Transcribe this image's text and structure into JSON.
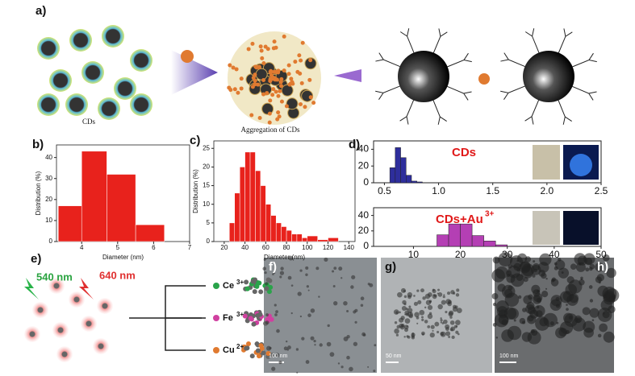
{
  "figure": {
    "a": {
      "label": "a)",
      "left_caption": "CDs",
      "center_caption": "Aggregation of CDs"
    },
    "d": {
      "label": "d)",
      "top_annotation": "CDs",
      "bottom_annotation": "CDs+Au",
      "bottom_annotation_sup": "3+"
    },
    "e": {
      "label": "e)",
      "green_wavelength": "540 nm",
      "red_wavelength": "640 nm",
      "ions": [
        {
          "symbol": "Ce",
          "charge": "3+"
        },
        {
          "symbol": "Fe",
          "charge": "3+"
        },
        {
          "symbol": "Cu",
          "charge": "2+"
        }
      ]
    },
    "f": {
      "label": "f)",
      "scale": "100 nm"
    },
    "g": {
      "label": "g)",
      "scale": "50 nm"
    },
    "h": {
      "label": "h)",
      "scale": "100 nm"
    }
  },
  "chart_data": [
    {
      "type": "histogram",
      "label": "b)",
      "xlabel": "Diameter (nm)",
      "ylabel": "Distribution (%)",
      "color": "#e8221c",
      "bins": [
        3.35,
        4,
        4.7,
        5.5,
        6.3
      ],
      "counts": [
        17,
        43,
        32,
        8
      ],
      "xlim": [
        3.3,
        7
      ],
      "ylim": [
        0,
        46
      ],
      "xticks": [
        4,
        5,
        6,
        7
      ],
      "yticks": [
        0,
        10,
        20,
        30,
        40
      ]
    },
    {
      "type": "histogram",
      "label": "c)",
      "xlabel": "Diameter (nm)",
      "ylabel": "Distribution (%)",
      "color": "#e8221c",
      "bins": [
        25,
        30,
        35,
        40,
        45,
        50,
        55,
        60,
        65,
        70,
        75,
        80,
        85,
        90,
        95,
        100,
        110,
        120,
        130
      ],
      "counts": [
        5,
        13,
        20,
        24,
        24,
        19,
        15,
        10,
        7,
        5,
        4,
        3,
        2,
        2,
        1,
        1.5,
        0.5,
        1
      ],
      "xlim": [
        10,
        146
      ],
      "ylim": [
        0,
        27
      ],
      "xticks": [
        20,
        40,
        60,
        80,
        100,
        120,
        140
      ],
      "yticks": [
        0,
        5,
        10,
        15,
        20,
        25
      ]
    },
    {
      "type": "histogram",
      "color": "#2e2e9c",
      "bins": [
        0.55,
        0.6,
        0.65,
        0.7,
        0.75,
        0.8,
        0.85
      ],
      "counts": [
        18,
        42,
        30,
        9,
        2,
        1
      ],
      "xlim": [
        0.4,
        2.5
      ],
      "ylim": [
        0,
        50
      ],
      "xticks": [
        0.5,
        {
          "value": 1,
          "label": "1.0"
        },
        1.5,
        {
          "value": 2,
          "label": "2.0"
        },
        2.5
      ],
      "yticks": [
        0,
        20,
        40
      ]
    },
    {
      "type": "histogram",
      "color": "#b43fb4",
      "bins": [
        15,
        17.5,
        20,
        22.5,
        25,
        27.5,
        30
      ],
      "counts": [
        15,
        29,
        29,
        14,
        7,
        2
      ],
      "xlim": [
        1.5,
        50
      ],
      "ylim": [
        0,
        50
      ],
      "xticks": [
        10,
        20,
        30,
        40,
        50
      ],
      "yticks": [
        0,
        20,
        40
      ]
    }
  ]
}
